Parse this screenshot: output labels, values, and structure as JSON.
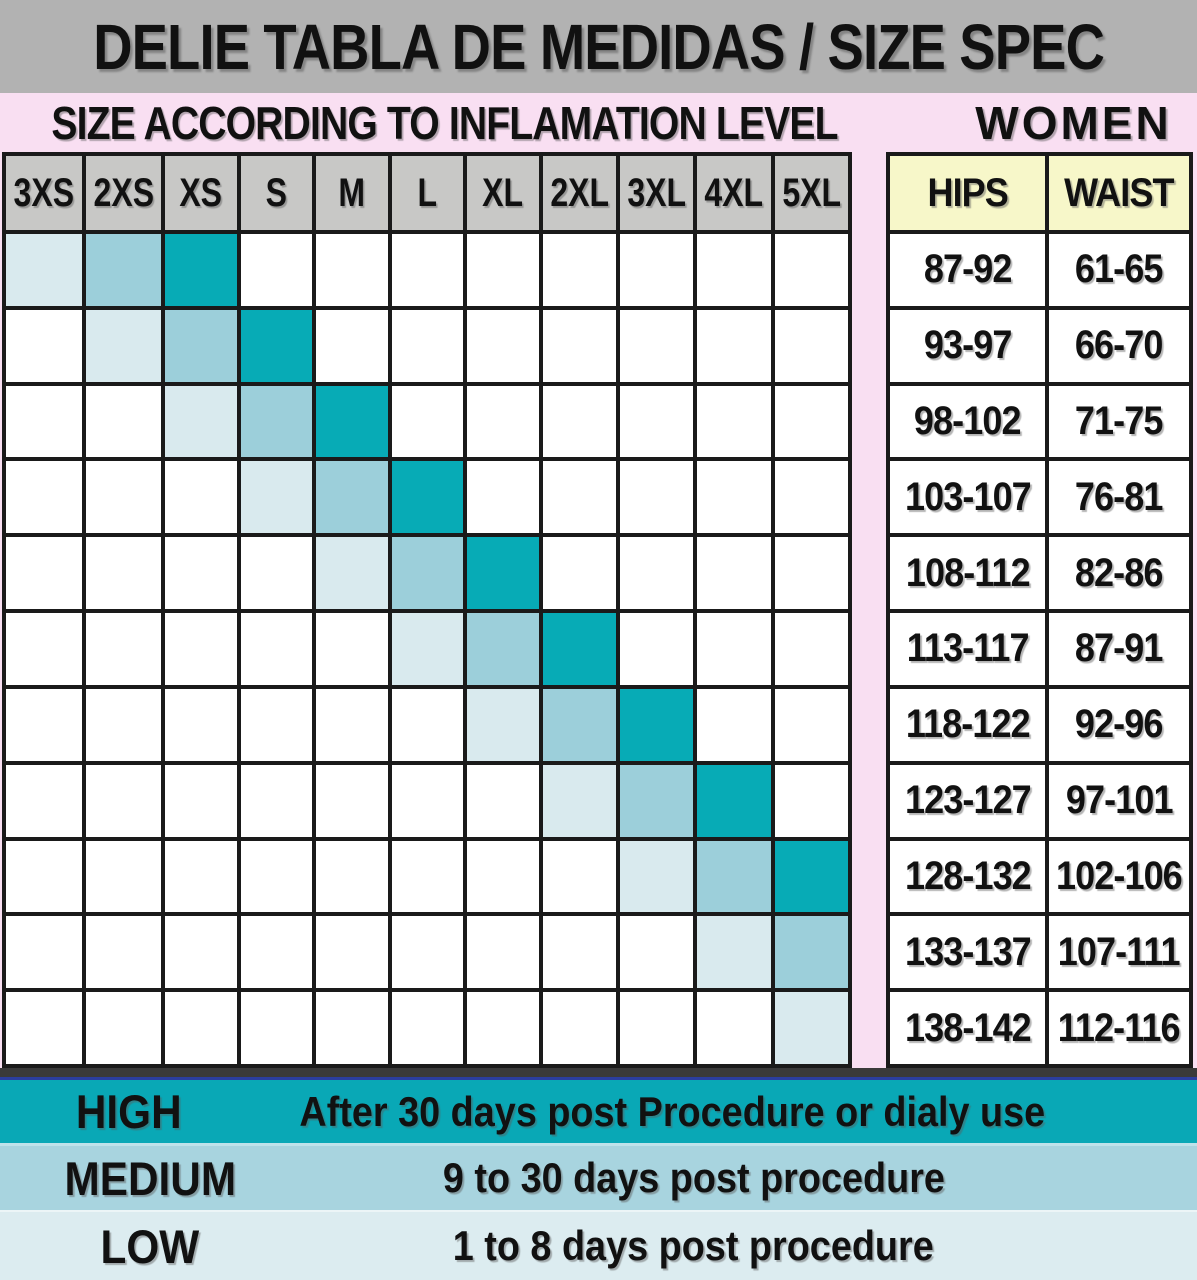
{
  "title": "DELIE TABLA DE MEDIDAS / SIZE SPEC",
  "subtitle": "SIZE ACCORDING TO INFLAMATION LEVEL",
  "women_label": "WOMEN",
  "sizes": [
    "3XS",
    "2XS",
    "XS",
    "S",
    "M",
    "L",
    "XL",
    "2XL",
    "3XL",
    "4XL",
    "5XL"
  ],
  "measurement_table": {
    "headers": [
      "HIPS",
      "WAIST"
    ],
    "rows": [
      [
        "87-92",
        "61-65"
      ],
      [
        "93-97",
        "66-70"
      ],
      [
        "98-102",
        "71-75"
      ],
      [
        "103-107",
        "76-81"
      ],
      [
        "108-112",
        "82-86"
      ],
      [
        "113-117",
        "87-91"
      ],
      [
        "118-122",
        "92-96"
      ],
      [
        "123-127",
        "97-101"
      ],
      [
        "128-132",
        "102-106"
      ],
      [
        "133-137",
        "107-111"
      ],
      [
        "138-142",
        "112-116"
      ]
    ]
  },
  "grid": {
    "rows": [
      {
        "hips": "87-92",
        "waist": "61-65",
        "low": "3XS",
        "medium": "2XS",
        "high": "XS"
      },
      {
        "hips": "93-97",
        "waist": "66-70",
        "low": "2XS",
        "medium": "XS",
        "high": "S"
      },
      {
        "hips": "98-102",
        "waist": "71-75",
        "low": "XS",
        "medium": "S",
        "high": "M"
      },
      {
        "hips": "103-107",
        "waist": "76-81",
        "low": "S",
        "medium": "M",
        "high": "L"
      },
      {
        "hips": "108-112",
        "waist": "82-86",
        "low": "M",
        "medium": "L",
        "high": "XL"
      },
      {
        "hips": "113-117",
        "waist": "87-91",
        "low": "L",
        "medium": "XL",
        "high": "2XL"
      },
      {
        "hips": "118-122",
        "waist": "92-96",
        "low": "XL",
        "medium": "2XL",
        "high": "3XL"
      },
      {
        "hips": "123-127",
        "waist": "97-101",
        "low": "2XL",
        "medium": "3XL",
        "high": "4XL"
      },
      {
        "hips": "128-132",
        "waist": "102-106",
        "low": "3XL",
        "medium": "4XL",
        "high": "5XL"
      },
      {
        "hips": "133-137",
        "waist": "107-111",
        "low": "4XL",
        "medium": "5XL",
        "high": null
      },
      {
        "hips": "138-142",
        "waist": "112-116",
        "low": "5XL",
        "medium": null,
        "high": null
      }
    ]
  },
  "legend": [
    {
      "level": "high",
      "label": "HIGH",
      "description": "After 30 days post Procedure or dialy use"
    },
    {
      "level": "medium",
      "label": "MEDIUM",
      "description": "9 to 30 days post procedure"
    },
    {
      "level": "low",
      "label": "LOW",
      "description": "1 to 8 days post procedure"
    }
  ],
  "colors": {
    "high": "#07abb6",
    "medium": "#9ccfda",
    "low": "#d9eaee",
    "legend_high": "#09a8b6",
    "legend_medium": "#a8d4df",
    "legend_low": "#dcecf0",
    "banner_bg": "#b2b2b2",
    "pink_bg": "#f9dff2",
    "header_gray": "#c8c8c6",
    "header_yellow": "#f7f7c9",
    "grid_line": "#1a1a1a",
    "separator_dark": "#3a3a3a",
    "separator_blue": "#2b3e9f"
  },
  "chart_data": {
    "type": "heatmap",
    "title": "DELIE TABLA DE MEDIDAS / SIZE SPEC",
    "subtitle": "SIZE ACCORDING TO INFLAMATION LEVEL",
    "audience": "WOMEN",
    "x_labels": [
      "3XS",
      "2XS",
      "XS",
      "S",
      "M",
      "L",
      "XL",
      "2XL",
      "3XL",
      "4XL",
      "5XL"
    ],
    "row_measurements": [
      {
        "hips": "87-92",
        "waist": "61-65"
      },
      {
        "hips": "93-97",
        "waist": "66-70"
      },
      {
        "hips": "98-102",
        "waist": "71-75"
      },
      {
        "hips": "103-107",
        "waist": "76-81"
      },
      {
        "hips": "108-112",
        "waist": "82-86"
      },
      {
        "hips": "113-117",
        "waist": "87-91"
      },
      {
        "hips": "118-122",
        "waist": "92-96"
      },
      {
        "hips": "123-127",
        "waist": "97-101"
      },
      {
        "hips": "128-132",
        "waist": "102-106"
      },
      {
        "hips": "133-137",
        "waist": "107-111"
      },
      {
        "hips": "138-142",
        "waist": "112-116"
      }
    ],
    "cells_by_level": [
      {
        "row": 1,
        "low": "3XS",
        "medium": "2XS",
        "high": "XS"
      },
      {
        "row": 2,
        "low": "2XS",
        "medium": "XS",
        "high": "S"
      },
      {
        "row": 3,
        "low": "XS",
        "medium": "S",
        "high": "M"
      },
      {
        "row": 4,
        "low": "S",
        "medium": "M",
        "high": "L"
      },
      {
        "row": 5,
        "low": "M",
        "medium": "L",
        "high": "XL"
      },
      {
        "row": 6,
        "low": "L",
        "medium": "XL",
        "high": "2XL"
      },
      {
        "row": 7,
        "low": "XL",
        "medium": "2XL",
        "high": "3XL"
      },
      {
        "row": 8,
        "low": "2XL",
        "medium": "3XL",
        "high": "4XL"
      },
      {
        "row": 9,
        "low": "3XL",
        "medium": "4XL",
        "high": "5XL"
      },
      {
        "row": 10,
        "low": "4XL",
        "medium": "5XL",
        "high": null
      },
      {
        "row": 11,
        "low": "5XL",
        "medium": null,
        "high": null
      }
    ],
    "legend": [
      {
        "label": "HIGH",
        "description": "After 30 days post Procedure or dialy use",
        "color": "#07abb6"
      },
      {
        "label": "MEDIUM",
        "description": "9 to 30 days post procedure",
        "color": "#9ccfda"
      },
      {
        "label": "LOW",
        "description": "1 to 8 days post procedure",
        "color": "#d9eaee"
      }
    ],
    "legend_position": "bottom"
  }
}
